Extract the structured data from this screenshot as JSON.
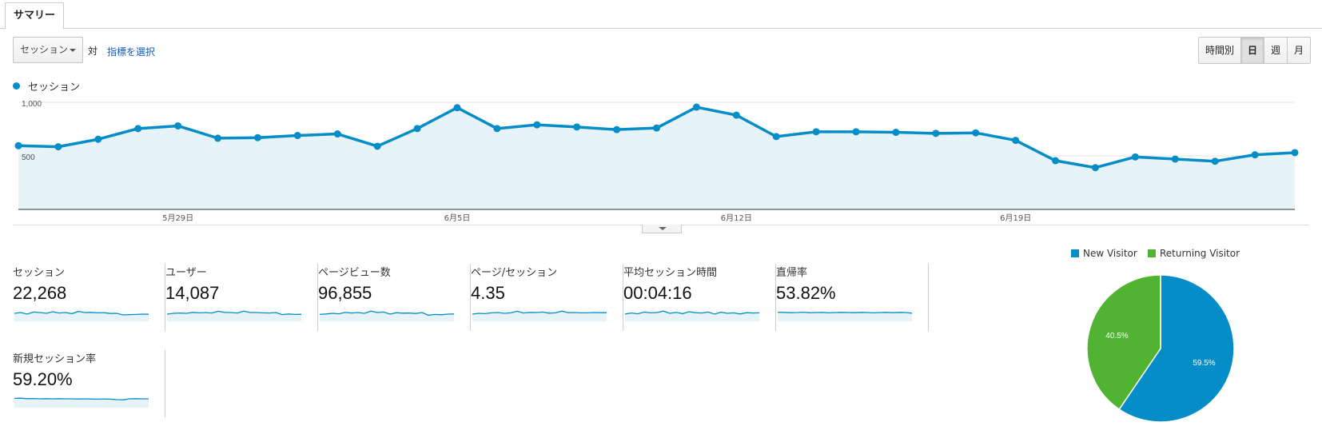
{
  "tabs": {
    "summary": "サマリー"
  },
  "toolbar": {
    "metric_select": "セッション",
    "vs_label": "対",
    "choose_metric": "指標を選択",
    "periods": [
      "時間別",
      "日",
      "週",
      "月"
    ],
    "active_period": "日"
  },
  "colors": {
    "primary": "#058dc7",
    "new_visitor": "#058dc7",
    "returning_visitor": "#50b432",
    "area_fill": "#e6f3f9"
  },
  "chart_data": [
    {
      "type": "line",
      "series": [
        {
          "name": "セッション",
          "values": [
            595,
            585,
            655,
            755,
            780,
            665,
            670,
            690,
            705,
            590,
            755,
            950,
            755,
            790,
            770,
            745,
            760,
            955,
            880,
            680,
            725,
            725,
            720,
            710,
            715,
            645,
            455,
            390,
            490,
            470,
            450,
            510,
            530
          ]
        }
      ],
      "y_ticks": [
        "1,000",
        "500"
      ],
      "ylim": [
        0,
        1000
      ],
      "x_tick_labels": [
        {
          "label": "5月29日",
          "index": 4
        },
        {
          "label": "6月5日",
          "index": 11
        },
        {
          "label": "6月12日",
          "index": 18
        },
        {
          "label": "6月19日",
          "index": 25
        }
      ],
      "grid": true
    },
    {
      "type": "pie",
      "categories": [
        "New Visitor",
        "Returning Visitor"
      ],
      "values": [
        59.5,
        40.5
      ],
      "labels": [
        "59.5%",
        "40.5%"
      ],
      "legend": "top"
    }
  ],
  "kpis": [
    {
      "label": "セッション",
      "value": "22,268",
      "spark": [
        5,
        5.5,
        4.5,
        5.8,
        5.5,
        5,
        6,
        5.2,
        5.5,
        4.8,
        6.2,
        5.5,
        5.6,
        5.3,
        5.4,
        4.9,
        5,
        4,
        4.2,
        4.3,
        4.5,
        4.4
      ]
    },
    {
      "label": "ユーザー",
      "value": "14,087",
      "spark": [
        4.5,
        5,
        5.2,
        5,
        5.6,
        5.3,
        5.5,
        5.2,
        6.3,
        5.6,
        5.5,
        5.2,
        6.4,
        5.5,
        5.5,
        5.3,
        5.2,
        5.5,
        4.2,
        4.6,
        4.3,
        4.4
      ]
    },
    {
      "label": "ページビュー数",
      "value": "96,855",
      "spark": [
        4.3,
        4.6,
        5,
        4.7,
        5.6,
        5.2,
        5.5,
        5,
        6.4,
        5.5,
        5.8,
        4.5,
        5.4,
        5.1,
        5.2,
        4.9,
        5.5,
        3.8,
        4.3,
        4.1,
        4.5,
        4.6
      ]
    },
    {
      "label": "ページ/セッション",
      "value": "4.35",
      "spark": [
        4.5,
        5,
        4.8,
        5.3,
        5.5,
        5,
        5.3,
        6.3,
        5.2,
        5.6,
        5.5,
        5.8,
        5.1,
        5.3,
        6.4,
        5.4,
        5.5,
        5.3,
        5.3,
        5.5,
        5.4,
        5.4
      ]
    },
    {
      "label": "平均セッション時間",
      "value": "00:04:16",
      "spark": [
        4.6,
        5.2,
        4.7,
        5.8,
        5.3,
        5.5,
        6.4,
        5,
        5.6,
        4.8,
        6,
        5.4,
        5.2,
        5.8,
        4.5,
        5.7,
        5,
        5.3,
        4.6,
        5.4,
        5.2,
        5.3
      ]
    },
    {
      "label": "直帰率",
      "value": "53.82%",
      "spark": [
        5.7,
        5.6,
        5.4,
        5.5,
        5.7,
        5.4,
        5.5,
        5.6,
        5.3,
        5.5,
        5.6,
        5.5,
        5.4,
        5.6,
        5.5,
        5.3,
        5.5,
        5.6,
        5.4,
        5.6,
        5.5,
        5.1
      ]
    },
    {
      "label": "新規セッション率",
      "value": "59.20%",
      "spark": [
        5.8,
        5.9,
        5.6,
        5.7,
        5.5,
        5.6,
        5.5,
        5.6,
        5.5,
        5.5,
        5.4,
        5.5,
        5.4,
        5.3,
        5.4,
        5.3,
        5,
        4.9,
        5.5,
        5.6,
        5.5,
        5.5
      ]
    }
  ]
}
